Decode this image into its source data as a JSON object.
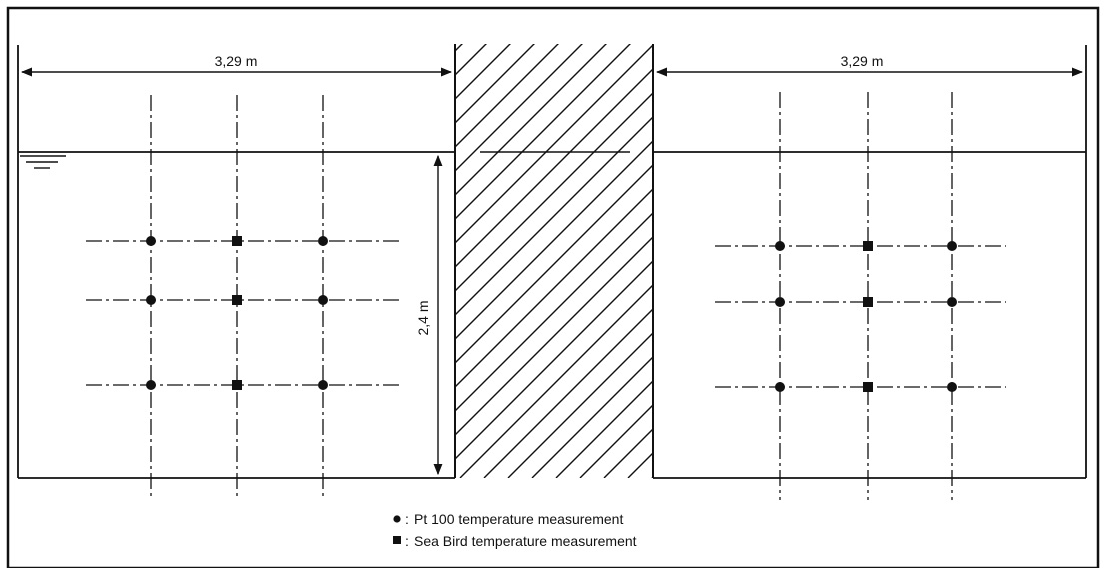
{
  "dimensions": {
    "left_width": "3,29 m",
    "right_width": "3,29 m",
    "water_depth": "2,4 m"
  },
  "legend": {
    "pt100": "Pt 100 temperature measurement",
    "seabird": "Sea Bird temperature measurement",
    "separator": ":"
  },
  "sensor_grid": {
    "left": [
      [
        "pt100",
        "seabird",
        "pt100"
      ],
      [
        "pt100",
        "seabird",
        "pt100"
      ],
      [
        "pt100",
        "seabird",
        "pt100"
      ]
    ],
    "right": [
      [
        "pt100",
        "seabird",
        "pt100"
      ],
      [
        "pt100",
        "seabird",
        "pt100"
      ],
      [
        "pt100",
        "seabird",
        "pt100"
      ]
    ]
  },
  "colors": {
    "ink": "#111111",
    "background": "#ffffff"
  }
}
